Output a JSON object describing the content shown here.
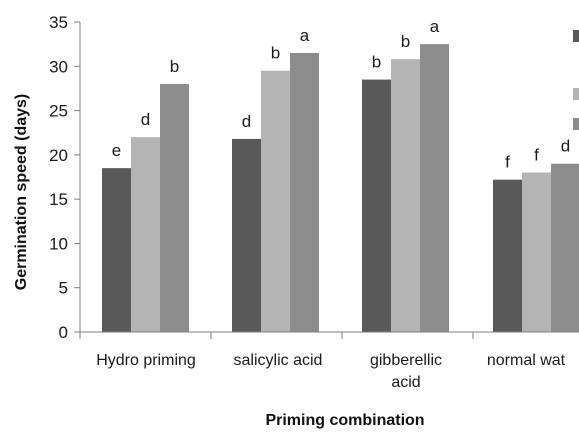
{
  "chart_data": {
    "type": "bar",
    "title": "",
    "xlabel": "Priming combination",
    "ylabel": "Germination speed (days)",
    "ylim": [
      0,
      35
    ],
    "yticks": [
      0,
      5,
      10,
      15,
      20,
      25,
      30,
      35
    ],
    "grid": false,
    "legend": "right (cut off)",
    "categories": [
      [
        "Hydro priming"
      ],
      [
        "salicylic acid"
      ],
      [
        "gibberellic",
        "acid"
      ],
      [
        "normal wat"
      ]
    ],
    "series": [
      {
        "color": "#595959",
        "values": [
          18.5,
          21.8,
          28.5,
          17.2
        ],
        "letters": [
          "e",
          "d",
          "b",
          "f"
        ]
      },
      {
        "color": "#b4b4b4",
        "values": [
          22.0,
          29.5,
          30.8,
          18.0
        ],
        "letters": [
          "d",
          "b",
          "b",
          "f"
        ]
      },
      {
        "color": "#8c8c8c",
        "values": [
          28.0,
          31.5,
          32.5,
          19.0
        ],
        "letters": [
          "b",
          "a",
          "a",
          "d"
        ]
      }
    ]
  }
}
